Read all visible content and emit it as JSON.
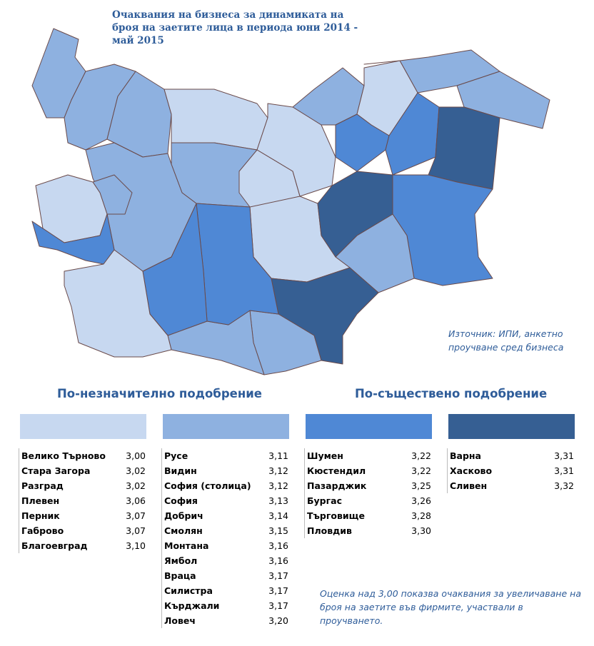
{
  "title": "Очаквания на бизнеса за динамиката на броя на заетите лица в периода юни 2014 - май 2015",
  "source": "Източник: ИПИ, анкетно проучване сред бизнеса",
  "headings": [
    "По-незначително подобрение",
    "По-съществено подобрение"
  ],
  "groups": [
    {
      "color": "#c7d8f0",
      "rows": [
        [
          "Велико Търново",
          "3,00"
        ],
        [
          "Стара Загора",
          "3,02"
        ],
        [
          "Разград",
          "3,02"
        ],
        [
          "Плевен",
          "3,06"
        ],
        [
          "Перник",
          "3,07"
        ],
        [
          "Габрово",
          "3,07"
        ],
        [
          "Благоевград",
          "3,10"
        ]
      ]
    },
    {
      "color": "#8eb1e0",
      "rows": [
        [
          "Русе",
          "3,11"
        ],
        [
          "Видин",
          "3,12"
        ],
        [
          "София (столица)",
          "3,12"
        ],
        [
          "София",
          "3,13"
        ],
        [
          "Добрич",
          "3,14"
        ],
        [
          "Смолян",
          "3,15"
        ],
        [
          "Монтана",
          "3,16"
        ],
        [
          "Ямбол",
          "3,16"
        ],
        [
          "Враца",
          "3,17"
        ],
        [
          "Силистра",
          "3,17"
        ],
        [
          "Кърджали",
          "3,17"
        ],
        [
          "Ловеч",
          "3,20"
        ]
      ]
    },
    {
      "color": "#4f88d5",
      "rows": [
        [
          "Шумен",
          "3,22"
        ],
        [
          "Кюстендил",
          "3,22"
        ],
        [
          "Пазарджик",
          "3,25"
        ],
        [
          "Бургас",
          "3,26"
        ],
        [
          "Търговище",
          "3,28"
        ],
        [
          "Пловдив",
          "3,30"
        ]
      ]
    },
    {
      "color": "#365f93",
      "rows": [
        [
          "Варна",
          "3,31"
        ],
        [
          "Хасково",
          "3,31"
        ],
        [
          "Сливен",
          "3,32"
        ]
      ]
    }
  ],
  "note": "Оценка над 3,00 показва очаквания за увеличаване на броя на заетите във фирмите, участвали в проучването."
}
